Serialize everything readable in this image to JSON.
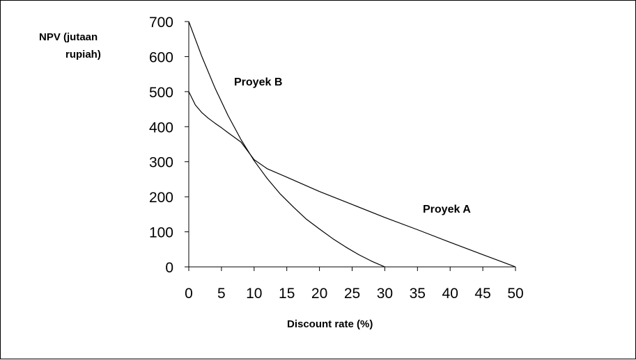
{
  "chart_data": {
    "type": "line",
    "title": "",
    "xlabel": "Discount rate (%)",
    "ylabel_lines": [
      "NPV (jutaan",
      "rupiah)"
    ],
    "xlim": [
      0,
      50
    ],
    "ylim": [
      0,
      700
    ],
    "xticks": [
      0,
      5,
      10,
      15,
      20,
      25,
      30,
      35,
      40,
      45,
      50
    ],
    "yticks": [
      0,
      100,
      200,
      300,
      400,
      500,
      600,
      700
    ],
    "grid": false,
    "legend": "none",
    "series": [
      {
        "name": "Proyek A",
        "x": [
          0,
          1,
          2,
          3,
          4,
          5,
          6,
          8,
          10,
          12,
          15,
          20,
          25,
          30,
          35,
          40,
          45,
          50
        ],
        "y": [
          500,
          462,
          440,
          424,
          410,
          397,
          383,
          356,
          306,
          280,
          256,
          215,
          178,
          141,
          106,
          70,
          35,
          0
        ]
      },
      {
        "name": "Proyek B",
        "x": [
          0,
          2,
          4,
          6,
          8,
          10,
          12,
          14,
          16,
          18,
          20,
          22,
          24,
          26,
          28,
          30
        ],
        "y": [
          700,
          600,
          511,
          432,
          363,
          303,
          252,
          208,
          171,
          136,
          108,
          81,
          57,
          35,
          16,
          0
        ]
      }
    ]
  }
}
